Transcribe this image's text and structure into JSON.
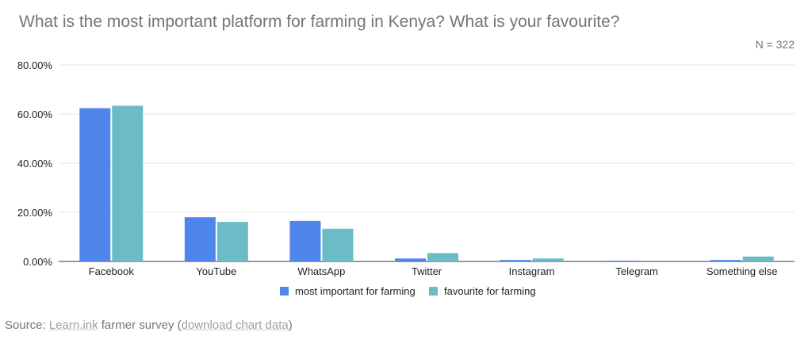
{
  "chart_data": {
    "type": "bar",
    "title": "What is the most important platform for farming in Kenya? What is your favourite?",
    "note": "N = 322",
    "categories": [
      "Facebook",
      "YouTube",
      "WhatsApp",
      "Twitter",
      "Instagram",
      "Telegram",
      "Something else"
    ],
    "series": [
      {
        "name": "most important for farming",
        "color": "#4f86ec",
        "values": [
          62.4,
          18.0,
          16.5,
          1.2,
          0.6,
          0.3,
          0.6
        ]
      },
      {
        "name": "favourite for farming",
        "color": "#6bbcc6",
        "values": [
          63.4,
          16.1,
          13.3,
          3.4,
          1.2,
          0.0,
          2.0
        ]
      }
    ],
    "y_ticks": [
      "80.00%",
      "60.00%",
      "40.00%",
      "20.00%",
      "0.00%"
    ],
    "ylim": [
      0,
      80
    ],
    "grid": true,
    "legend_position": "bottom"
  },
  "source": {
    "prefix": "Source: ",
    "link1": "Learn.ink",
    "middle": " farmer survey (",
    "link2": "download chart data",
    "suffix": ")"
  }
}
